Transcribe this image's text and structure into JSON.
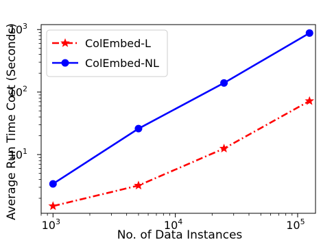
{
  "chart_data": {
    "type": "line",
    "xlabel": "No. of Data Instances",
    "ylabel": "Average Run Time Cost (Seconds)",
    "xscale": "log",
    "yscale": "log",
    "xlim": [
      800,
      140000
    ],
    "ylim": [
      1.15,
      1200
    ],
    "x_ticks": [
      {
        "value": 1000,
        "base": "10",
        "exp": "3"
      },
      {
        "value": 10000,
        "base": "10",
        "exp": "4"
      },
      {
        "value": 100000,
        "base": "10",
        "exp": "5"
      }
    ],
    "y_ticks": [
      {
        "value": 10,
        "base": "10",
        "exp": "1"
      },
      {
        "value": 100,
        "base": "10",
        "exp": "2"
      },
      {
        "value": 1000,
        "base": "10",
        "exp": "3"
      }
    ],
    "grid": false,
    "legend_position": "top-left",
    "series": [
      {
        "name": "ColEmbed-L",
        "color": "#ff0000",
        "line_style": "dash-dot",
        "marker": "star",
        "x": [
          1000,
          5000,
          25000,
          125000
        ],
        "y": [
          1.5,
          3.2,
          12.5,
          72
        ]
      },
      {
        "name": "ColEmbed-NL",
        "color": "#0000ff",
        "line_style": "solid",
        "marker": "circle",
        "x": [
          1000,
          5000,
          25000,
          125000
        ],
        "y": [
          3.4,
          26,
          140,
          880
        ]
      }
    ]
  }
}
